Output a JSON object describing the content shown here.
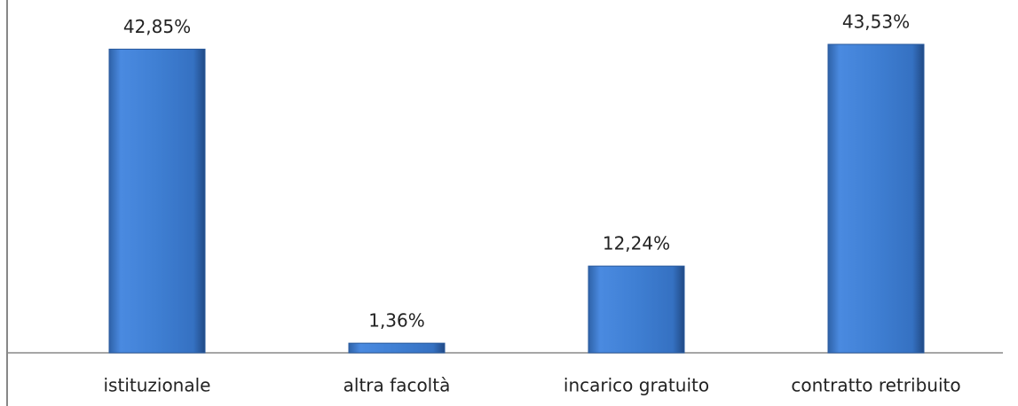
{
  "chart_data": {
    "type": "bar",
    "categories": [
      "istituzionale",
      "altra facoltà",
      "incarico gratuito",
      "contratto retribuito"
    ],
    "values": [
      42.85,
      1.36,
      12.24,
      43.53
    ],
    "value_labels": [
      "42,85%",
      "1,36%",
      "12,24%",
      "43,53%"
    ],
    "color": "#3f7fd3"
  }
}
